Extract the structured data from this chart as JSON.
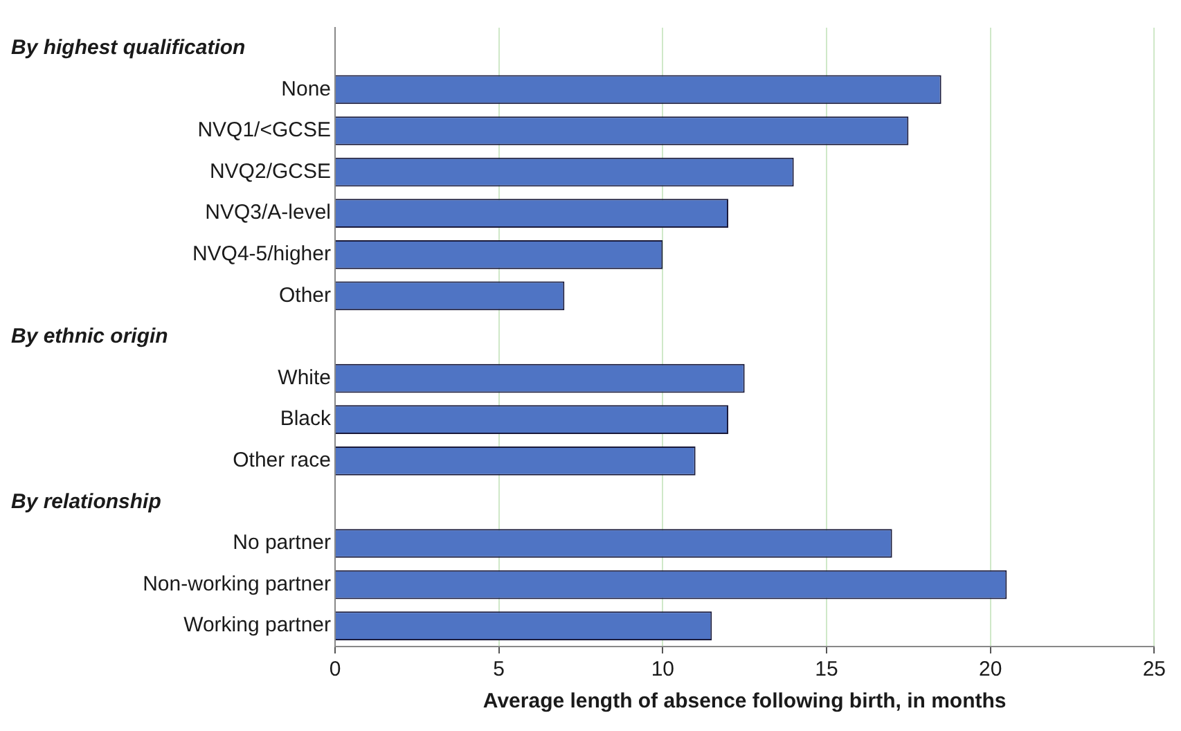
{
  "chart_data": {
    "type": "bar",
    "orientation": "horizontal",
    "xlabel": "Average length of absence following birth, in months",
    "categories": [
      null,
      "None",
      "NVQ1/<GCSE",
      "NVQ2/GCSE",
      "NVQ3/A-level",
      "NVQ4-5/higher",
      "Other",
      null,
      "White",
      "Black",
      "Other race",
      null,
      "No partner",
      "Non-working partner",
      "Working partner"
    ],
    "values": [
      null,
      18.5,
      17.5,
      14.0,
      12.0,
      10.0,
      7.0,
      null,
      12.5,
      12.0,
      11.0,
      null,
      17.0,
      20.5,
      11.5
    ],
    "annotations": [
      "By highest qualification",
      "By ethnic origin",
      "By relationship"
    ],
    "color": "#4f74c4",
    "xlim": [
      0,
      25
    ],
    "xticks": [
      0,
      5,
      10,
      15,
      20,
      25
    ],
    "grid": "x",
    "legend": false
  }
}
